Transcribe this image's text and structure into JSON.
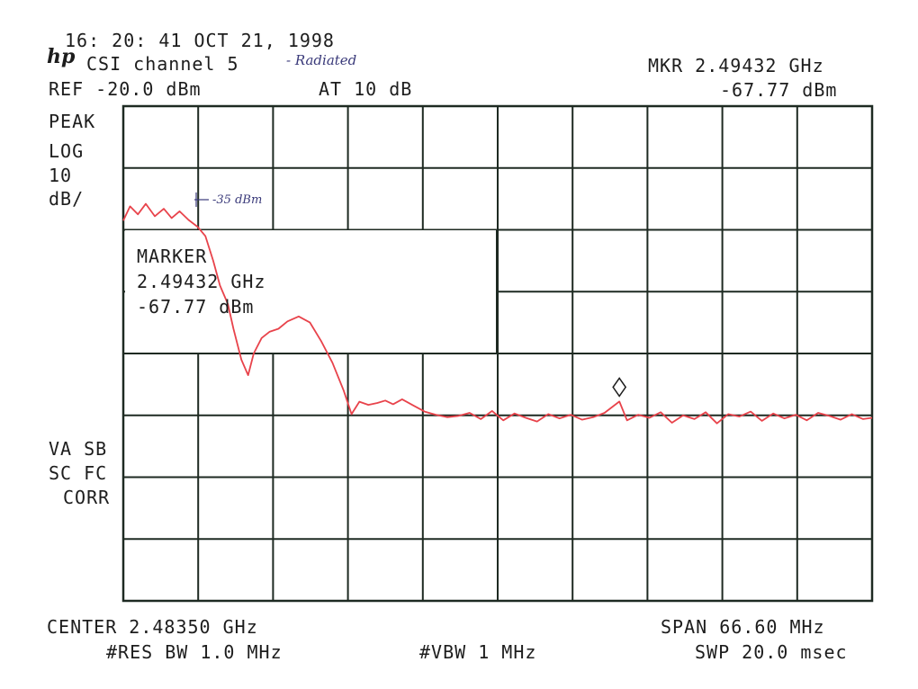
{
  "header": {
    "timestamp": "16: 20: 41 OCT 21, 1998",
    "logo": "hp",
    "title": "CSI channel 5",
    "title_note": "- Radiated",
    "ref_level": "REF -20.0 dBm",
    "attenuation": "AT 10 dB",
    "marker_freq_label": "MKR 2.49432 GHz",
    "marker_amp_label": "-67.77 dBm"
  },
  "left_panel": {
    "detector": "PEAK",
    "scale_type": "LOG",
    "scale_value": "10",
    "scale_unit": "dB/",
    "status_line1": "VA SB",
    "status_line2": "SC FC",
    "status_line3": "CORR"
  },
  "marker_box": {
    "title": "MARKER",
    "freq": "2.49432 GHz",
    "amp": "-67.77 dBm"
  },
  "annotation": {
    "text": "-35 dBm"
  },
  "footer": {
    "center": "CENTER 2.48350 GHz",
    "span": "SPAN 66.60 MHz",
    "rbw": "#RES BW 1.0 MHz",
    "vbw": "#VBW 1 MHz",
    "sweep": "SWP 20.0 msec"
  },
  "colors": {
    "trace": "#e8434b",
    "grid": "#1e2a22",
    "background": "#ffffff"
  },
  "chart_data": {
    "type": "line",
    "title": "",
    "xlabel": "",
    "ylabel": "",
    "x_unit": "GHz",
    "y_unit": "dBm",
    "xlim": [
      2.4502,
      2.5168
    ],
    "ylim": [
      -100,
      -20
    ],
    "grid": true,
    "x_divisions": 10,
    "y_divisions": 8,
    "marker": {
      "x": 2.49432,
      "y": -67.77
    },
    "series": [
      {
        "x": [
          2.4502,
          2.4508,
          2.4515,
          2.4522,
          2.453,
          2.4538,
          2.4545,
          2.4552,
          2.456,
          2.4568,
          2.4575,
          2.4582,
          2.4588,
          2.4595,
          2.46,
          2.4607,
          2.4613,
          2.4618,
          2.4625,
          2.4632,
          2.464,
          2.4648,
          2.4658,
          2.4668,
          2.4678,
          2.4688,
          2.4698,
          2.4705,
          2.4712,
          2.472,
          2.4728,
          2.4735,
          2.4742,
          2.475,
          2.476,
          2.477,
          2.478,
          2.479,
          2.48,
          2.481,
          2.482,
          2.483,
          2.484,
          2.485,
          2.486,
          2.487,
          2.488,
          2.489,
          2.49,
          2.491,
          2.492,
          2.493,
          2.49432,
          2.495,
          2.496,
          2.497,
          2.498,
          2.499,
          2.5,
          2.501,
          2.502,
          2.503,
          2.504,
          2.505,
          2.506,
          2.507,
          2.508,
          2.509,
          2.51,
          2.511,
          2.512,
          2.513,
          2.514,
          2.515,
          2.516,
          2.5168
        ],
        "y": [
          -38.5,
          -36.2,
          -37.5,
          -35.8,
          -37.8,
          -36.6,
          -38.1,
          -37.0,
          -38.4,
          -39.5,
          -41.0,
          -45.0,
          -49.0,
          -52.0,
          -56.0,
          -61.0,
          -63.5,
          -60.0,
          -57.5,
          -56.5,
          -56.0,
          -54.8,
          -54.0,
          -55.0,
          -58.0,
          -61.5,
          -66.0,
          -69.8,
          -67.8,
          -68.3,
          -68.0,
          -67.6,
          -68.2,
          -67.4,
          -68.4,
          -69.4,
          -69.9,
          -70.3,
          -70.1,
          -69.6,
          -70.6,
          -69.3,
          -70.8,
          -69.7,
          -70.4,
          -71.0,
          -69.8,
          -70.5,
          -69.9,
          -70.7,
          -70.3,
          -69.6,
          -67.77,
          -70.8,
          -69.9,
          -70.4,
          -69.5,
          -71.2,
          -70.0,
          -70.6,
          -69.5,
          -71.3,
          -69.8,
          -70.2,
          -69.4,
          -70.9,
          -69.7,
          -70.5,
          -69.9,
          -70.8,
          -69.6,
          -70.1,
          -70.7,
          -69.8,
          -70.6,
          -70.4
        ]
      }
    ]
  }
}
